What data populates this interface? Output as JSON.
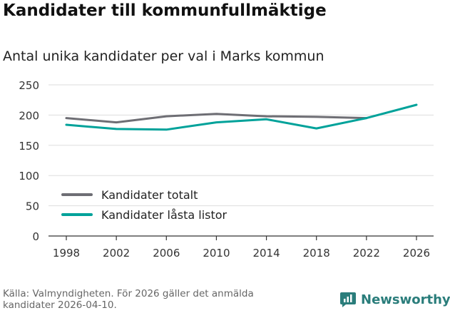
{
  "title": "Kandidater till kommunfullmäktige",
  "subtitle": "Antal unika kandidater per val i Marks kommun",
  "source": "Källa: Valmyndigheten. För 2026 gäller det anmälda kandidater 2026-04-10.",
  "brand": {
    "name": "Newsworthy",
    "icon": "newsworthy-logo-icon",
    "color": "#2a7d7b"
  },
  "colors": {
    "totalt": "#6e6e74",
    "lasta": "#00a29a",
    "grid": "#dddddd",
    "axis": "#333333"
  },
  "chart_data": {
    "type": "line",
    "title": "Kandidater till kommunfullmäktige",
    "subtitle": "Antal unika kandidater per val i Marks kommun",
    "xlabel": "",
    "ylabel": "",
    "x": [
      1998,
      2002,
      2006,
      2010,
      2014,
      2018,
      2022,
      2026
    ],
    "ylim": [
      0,
      250
    ],
    "yticks": [
      0,
      50,
      100,
      150,
      200,
      250
    ],
    "grid": true,
    "legend_position": "bottom-left",
    "series": [
      {
        "name": "Kandidater totalt",
        "values": [
          195,
          188,
          198,
          202,
          198,
          197,
          195,
          null
        ]
      },
      {
        "name": "Kandidater låsta listor",
        "values": [
          184,
          177,
          176,
          188,
          193,
          178,
          195,
          217
        ]
      }
    ]
  }
}
